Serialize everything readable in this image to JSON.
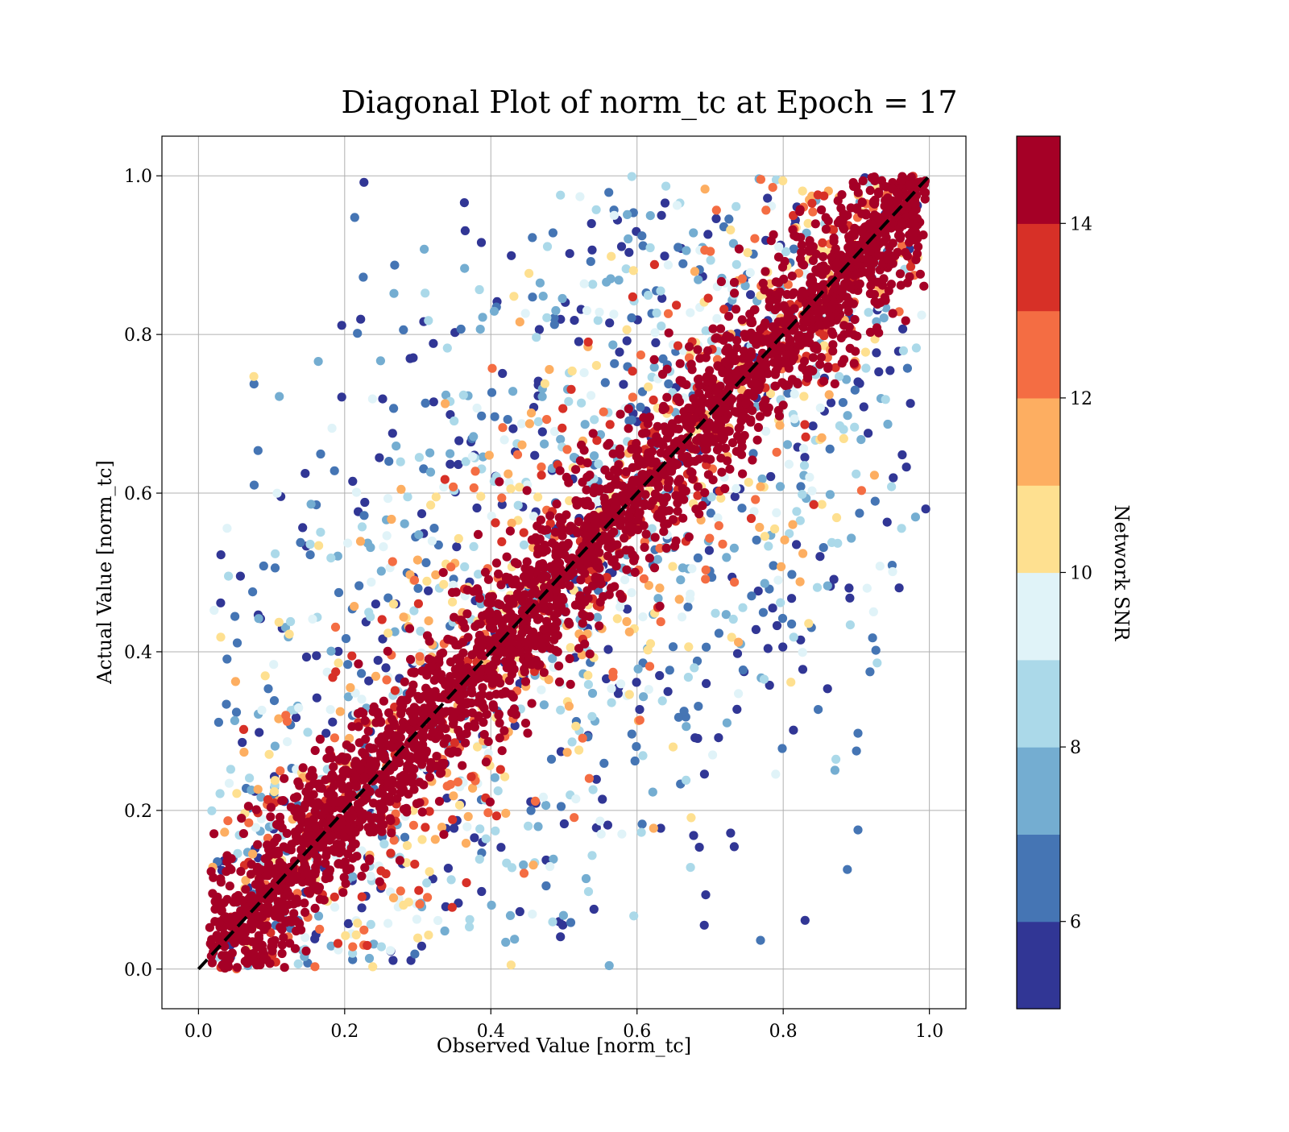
{
  "chart_data": {
    "type": "scatter",
    "title": "Diagonal Plot of norm_tc at Epoch = 17",
    "xlabel": "Observed Value [norm_tc]",
    "ylabel": "Actual Value [norm_tc]",
    "xlim": [
      -0.05,
      1.05
    ],
    "ylim": [
      -0.05,
      1.05
    ],
    "xticks": [
      0.0,
      0.2,
      0.4,
      0.6,
      0.8,
      1.0
    ],
    "xtick_labels": [
      "0.0",
      "0.2",
      "0.4",
      "0.6",
      "0.8",
      "1.0"
    ],
    "yticks": [
      0.0,
      0.2,
      0.4,
      0.6,
      0.8,
      1.0
    ],
    "ytick_labels": [
      "0.0",
      "0.2",
      "0.4",
      "0.6",
      "0.8",
      "1.0"
    ],
    "grid": true,
    "reference_line": {
      "x": [
        0,
        1
      ],
      "y": [
        0,
        1
      ],
      "style": "dashed",
      "color": "#000000"
    },
    "points_description": "dense band of high-SNR points along y = x; low-SNR points scattered widely above and below the diagonal",
    "colorbar": {
      "label": "Network SNR",
      "range": [
        5,
        15
      ],
      "ticks": [
        6,
        8,
        10,
        12,
        14
      ],
      "tick_labels": [
        "6",
        "8",
        "10",
        "12",
        "14"
      ],
      "colors": [
        "#313695",
        "#4575b4",
        "#74add1",
        "#abd9e9",
        "#e0f3f8",
        "#fee090",
        "#fdae61",
        "#f46d43",
        "#d73027",
        "#a50026"
      ]
    }
  }
}
